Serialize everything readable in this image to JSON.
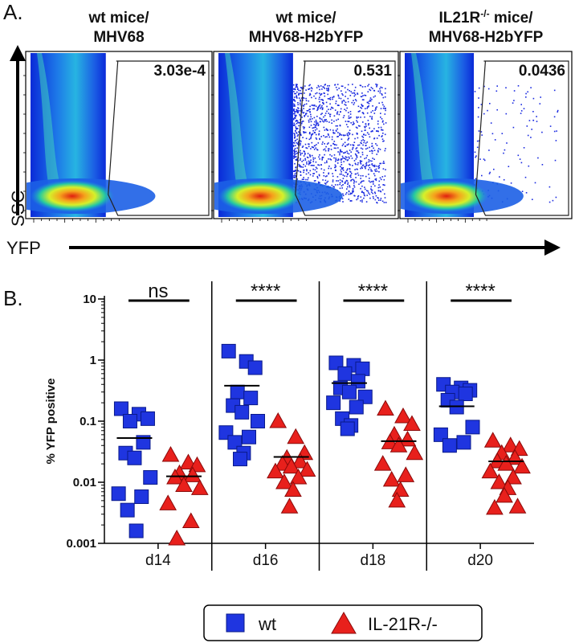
{
  "panel_a": {
    "label": "A.",
    "ylabel": "SSC",
    "xlabel": "YFP",
    "plots": [
      {
        "title_line1": "wt mice/",
        "title_line1_sup": "",
        "title_line1_rest": "",
        "title_line2": "MHV68",
        "gate_value": "3.03e-4",
        "positive_fraction": 0.000303
      },
      {
        "title_line1": "wt mice/",
        "title_line1_sup": "",
        "title_line1_rest": "",
        "title_line2": "MHV68-H2bYFP",
        "gate_value": "0.531",
        "positive_fraction": 0.531
      },
      {
        "title_line1": "IL21R",
        "title_line1_sup": "-/-",
        "title_line1_rest": " mice/",
        "title_line2": "MHV68-H2bYFP",
        "gate_value": "0.0436",
        "positive_fraction": 0.0436
      }
    ]
  },
  "chart_data": {
    "type": "scatter",
    "panel_label": "B.",
    "ylabel": "% YFP positive",
    "yscale": "log",
    "ylim": [
      0.001,
      10
    ],
    "yticks": [
      "0.001",
      "0.01",
      "0.1",
      "1",
      "10"
    ],
    "categories": [
      "d14",
      "d16",
      "d18",
      "d20"
    ],
    "significance": [
      "ns",
      "****",
      "****",
      "****"
    ],
    "series": [
      {
        "name": "wt",
        "marker": "square",
        "color": "#1f35e0",
        "values": [
          [
            0.16,
            0.13,
            0.11,
            0.1,
            0.045,
            0.03,
            0.025,
            0.012,
            0.0065,
            0.0058,
            0.0035,
            0.0016
          ],
          [
            1.4,
            0.95,
            0.75,
            0.3,
            0.24,
            0.18,
            0.14,
            0.1,
            0.065,
            0.055,
            0.045,
            0.03,
            0.024
          ],
          [
            0.9,
            0.82,
            0.72,
            0.6,
            0.45,
            0.35,
            0.3,
            0.25,
            0.2,
            0.17,
            0.11,
            0.085,
            0.075
          ],
          [
            0.4,
            0.35,
            0.32,
            0.3,
            0.28,
            0.22,
            0.17,
            0.08,
            0.06,
            0.045,
            0.04
          ]
        ],
        "means": [
          0.053,
          0.38,
          0.42,
          0.175
        ]
      },
      {
        "name": "IL-21R-/-",
        "marker": "triangle",
        "color": "#e8201c",
        "values": [
          [
            0.028,
            0.021,
            0.019,
            0.014,
            0.013,
            0.012,
            0.009,
            0.008,
            0.0045,
            0.0023,
            0.0012
          ],
          [
            0.1,
            0.055,
            0.03,
            0.025,
            0.022,
            0.02,
            0.018,
            0.016,
            0.015,
            0.012,
            0.01,
            0.0075,
            0.004
          ],
          [
            0.16,
            0.12,
            0.09,
            0.06,
            0.05,
            0.045,
            0.04,
            0.03,
            0.02,
            0.013,
            0.011,
            0.0075,
            0.005
          ],
          [
            0.048,
            0.04,
            0.035,
            0.03,
            0.025,
            0.022,
            0.02,
            0.018,
            0.015,
            0.012,
            0.01,
            0.008,
            0.006,
            0.004,
            0.0038
          ]
        ],
        "means": [
          0.0125,
          0.026,
          0.047,
          0.022
        ]
      }
    ],
    "legend": {
      "placement": "bottom-center",
      "entries": [
        "wt",
        "IL-21R-/-"
      ]
    }
  }
}
